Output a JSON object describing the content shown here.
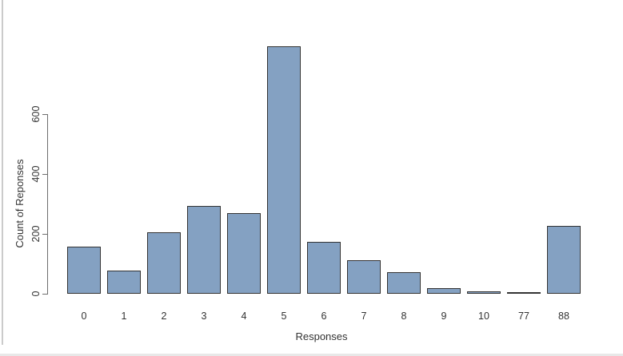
{
  "chart_data": {
    "type": "bar",
    "title": "",
    "xlabel": "Responses",
    "ylabel": "Count of Reponses",
    "categories": [
      "0",
      "1",
      "2",
      "3",
      "4",
      "5",
      "6",
      "7",
      "8",
      "9",
      "10",
      "77",
      "88"
    ],
    "values": [
      158,
      77,
      205,
      292,
      270,
      826,
      172,
      113,
      72,
      18,
      9,
      5,
      226
    ],
    "yticks": [
      0,
      200,
      400,
      600
    ],
    "ylim": [
      0,
      830
    ],
    "grid": false,
    "legend": null,
    "colors": {
      "bar_fill": "#84A1C2",
      "bar_border": "#333333",
      "axis": "#6e6e6e",
      "text": "#333333",
      "background": "#FFFFFF",
      "pane_divider": "#CBCBCB"
    }
  }
}
